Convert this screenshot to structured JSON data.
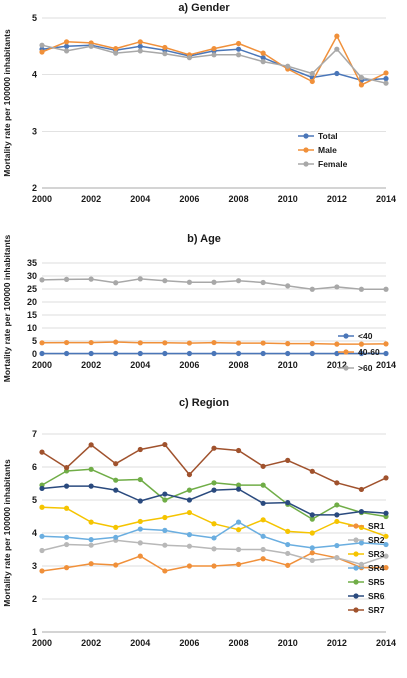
{
  "colors": {
    "grid": "#d0d0d0",
    "axis": "#a8a8a8"
  },
  "chart_data": [
    {
      "id": "gender",
      "type": "line",
      "title": "a) Gender",
      "ylabel": "Mortality rate per 100000 inhabitants",
      "xlabel": "",
      "x": [
        2000,
        2001,
        2002,
        2003,
        2004,
        2005,
        2006,
        2007,
        2008,
        2009,
        2010,
        2011,
        2012,
        2013,
        2014
      ],
      "x_ticks": [
        "2000",
        "2002",
        "2004",
        "2006",
        "2008",
        "2010",
        "2012",
        "2014"
      ],
      "ylim": [
        2,
        5
      ],
      "y_ticks": [
        "2",
        "3",
        "4",
        "5"
      ],
      "grid": "horizontal",
      "legend_position": "right",
      "series": [
        {
          "name": "Total",
          "color": "#4a76b8",
          "values": [
            4.45,
            4.5,
            4.52,
            4.43,
            4.5,
            4.43,
            4.33,
            4.42,
            4.45,
            4.3,
            4.12,
            3.95,
            4.02,
            3.9,
            3.93
          ]
        },
        {
          "name": "Male",
          "color": "#f0903a",
          "values": [
            4.4,
            4.58,
            4.56,
            4.46,
            4.58,
            4.48,
            4.35,
            4.46,
            4.55,
            4.38,
            4.1,
            3.88,
            4.68,
            3.82,
            4.03
          ]
        },
        {
          "name": "Female",
          "color": "#a8a8a8",
          "values": [
            4.52,
            4.42,
            4.5,
            4.38,
            4.42,
            4.37,
            4.3,
            4.35,
            4.35,
            4.23,
            4.15,
            4.02,
            4.45,
            3.95,
            3.85
          ]
        }
      ]
    },
    {
      "id": "age",
      "type": "line",
      "title": "b) Age",
      "ylabel": "Mortality rate per 100000 inhabitants",
      "xlabel": "",
      "x": [
        2000,
        2001,
        2002,
        2003,
        2004,
        2005,
        2006,
        2007,
        2008,
        2009,
        2010,
        2011,
        2012,
        2013,
        2014
      ],
      "x_ticks": [
        "2000",
        "2002",
        "2004",
        "2006",
        "2008",
        "2010",
        "2012",
        "2014"
      ],
      "ylim": [
        0,
        35
      ],
      "y_ticks": [
        "0",
        "5",
        "10",
        "15",
        "20",
        "25",
        "30",
        "35"
      ],
      "grid": "horizontal",
      "legend_position": "right",
      "series": [
        {
          "name": "<40",
          "color": "#4a76b8",
          "values": [
            0.2,
            0.2,
            0.2,
            0.2,
            0.2,
            0.2,
            0.2,
            0.2,
            0.2,
            0.2,
            0.2,
            0.2,
            0.2,
            0.2,
            0.2
          ]
        },
        {
          "name": "40-60",
          "color": "#f0903a",
          "values": [
            4.3,
            4.4,
            4.4,
            4.6,
            4.3,
            4.3,
            4.2,
            4.4,
            4.2,
            4.2,
            4.0,
            4.0,
            3.8,
            3.8,
            3.9
          ]
        },
        {
          "name": ">60",
          "color": "#a8a8a8",
          "values": [
            28.5,
            28.7,
            28.8,
            27.4,
            28.9,
            28.2,
            27.6,
            27.6,
            28.2,
            27.5,
            26.2,
            24.9,
            25.8,
            24.9,
            24.9
          ]
        }
      ]
    },
    {
      "id": "region",
      "type": "line",
      "title": "c) Region",
      "ylabel": "Mortality rate per 100000 inhabitants",
      "xlabel": "",
      "x": [
        2000,
        2001,
        2002,
        2003,
        2004,
        2005,
        2006,
        2007,
        2008,
        2009,
        2010,
        2011,
        2012,
        2013,
        2014
      ],
      "x_ticks": [
        "2000",
        "2002",
        "2004",
        "2006",
        "2008",
        "2010",
        "2012",
        "2014"
      ],
      "ylim": [
        1,
        7
      ],
      "y_ticks": [
        "1",
        "2",
        "3",
        "4",
        "5",
        "6",
        "7"
      ],
      "grid": "horizontal",
      "legend_position": "right",
      "series": [
        {
          "name": "SR1",
          "color": "#f0903a",
          "values": [
            2.85,
            2.95,
            3.07,
            3.03,
            3.3,
            2.85,
            3.0,
            3.0,
            3.05,
            3.22,
            3.02,
            3.4,
            3.25,
            2.95,
            2.95
          ]
        },
        {
          "name": "SR2",
          "color": "#b8b8b8",
          "values": [
            3.47,
            3.65,
            3.63,
            3.78,
            3.7,
            3.63,
            3.6,
            3.52,
            3.5,
            3.5,
            3.38,
            3.17,
            3.25,
            3.05,
            3.3
          ]
        },
        {
          "name": "SR3",
          "color": "#f5c400",
          "values": [
            4.78,
            4.75,
            4.33,
            4.17,
            4.35,
            4.47,
            4.62,
            4.28,
            4.1,
            4.4,
            4.05,
            4.0,
            4.35,
            4.17,
            3.9
          ]
        },
        {
          "name": "SR4",
          "color": "#6aaee0",
          "values": [
            3.9,
            3.87,
            3.8,
            3.87,
            4.12,
            4.08,
            3.95,
            3.85,
            4.33,
            3.9,
            3.65,
            3.55,
            3.62,
            3.7,
            3.65
          ]
        },
        {
          "name": "SR5",
          "color": "#70ad47",
          "values": [
            5.45,
            5.88,
            5.93,
            5.6,
            5.62,
            5.0,
            5.3,
            5.52,
            5.45,
            5.45,
            4.87,
            4.42,
            4.85,
            4.62,
            4.5
          ]
        },
        {
          "name": "SR6",
          "color": "#2a4a7e",
          "values": [
            5.35,
            5.42,
            5.42,
            5.3,
            4.97,
            5.18,
            5.0,
            5.3,
            5.33,
            4.9,
            4.92,
            4.55,
            4.55,
            4.65,
            4.6
          ]
        },
        {
          "name": "SR7",
          "color": "#a0522d",
          "values": [
            6.45,
            5.98,
            6.67,
            6.1,
            6.53,
            6.68,
            5.77,
            6.57,
            6.5,
            6.02,
            6.2,
            5.87,
            5.52,
            5.32,
            5.67
          ]
        }
      ]
    }
  ]
}
